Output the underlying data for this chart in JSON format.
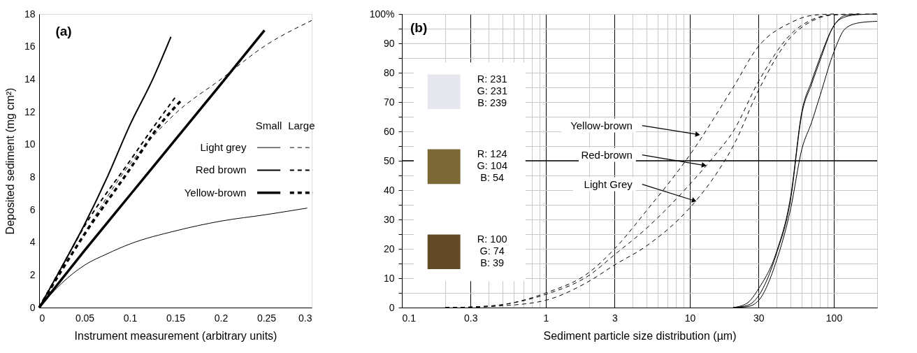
{
  "chart_data": [
    {
      "type": "line",
      "xlabel": "Instrument measurement (arbitrary units)",
      "ylabel": "Deposited sediment (mg cm²)",
      "annotations": [
        "(a)",
        "Small",
        "Large"
      ],
      "xlim": [
        0,
        0.3
      ],
      "xticks": [
        0,
        0.05,
        0.1,
        0.15,
        0.2,
        0.25,
        0.3
      ],
      "ylim": [
        0,
        18
      ],
      "yticks": [
        0,
        2,
        4,
        6,
        8,
        10,
        12,
        14,
        16,
        18
      ],
      "grid": false,
      "legend": "right",
      "series": [
        {
          "name": "Light grey",
          "color": "#000000",
          "line_style": "solid",
          "x": [
            0,
            0.025,
            0.05,
            0.075,
            0.1,
            0.15,
            0.2,
            0.25,
            0.295
          ],
          "values": [
            0,
            1.5,
            2.6,
            3.3,
            3.9,
            4.7,
            5.3,
            5.7,
            6.1
          ]
        },
        {
          "color": "#000000",
          "line_style": "dashed",
          "x": [
            0,
            0.05,
            0.1,
            0.15,
            0.2,
            0.25,
            0.3
          ],
          "values": [
            0,
            4.6,
            8.8,
            11.9,
            14.0,
            16.1,
            17.6
          ]
        },
        {
          "name": "Red brown",
          "color": "#000000",
          "line_style": "solid",
          "x": [
            0,
            0.025,
            0.05,
            0.075,
            0.1,
            0.125,
            0.145
          ],
          "values": [
            0,
            2.5,
            5.1,
            8.0,
            11.2,
            14.0,
            16.6
          ]
        },
        {
          "color": "#000000",
          "line_style": "dashed",
          "x": [
            0,
            0.025,
            0.05,
            0.1,
            0.125,
            0.15
          ],
          "values": [
            0,
            2.5,
            5.0,
            9.0,
            11.0,
            12.9
          ]
        },
        {
          "name": "Yellow-brown",
          "color": "#000000",
          "line_style": "solid",
          "x": [
            0,
            0.05,
            0.1,
            0.15,
            0.2,
            0.248
          ],
          "values": [
            0,
            3.5,
            6.9,
            10.3,
            13.7,
            17.0
          ]
        },
        {
          "color": "#000000",
          "line_style": "dashed",
          "x": [
            0,
            0.025,
            0.05,
            0.1,
            0.13,
            0.158
          ],
          "values": [
            0,
            2.3,
            4.5,
            8.5,
            11.0,
            12.8
          ]
        }
      ]
    },
    {
      "type": "line",
      "xlabel": "Sediment particle size distribution (µm)",
      "log": "x",
      "annotations": [
        "(b)",
        "R: 231\nG: 231\nB: 239",
        "R: 124\nG: 104\nB:  54",
        "R: 100\nG: 74\nB: 39",
        {
          "text": "Yellow-brown",
          "x": 11.2,
          "y": 59
        },
        {
          "text": "Red-brown",
          "x": 12.4,
          "y": 48.5
        },
        {
          "text": "Light Grey",
          "x": 10.6,
          "y": 36.5
        }
      ],
      "xlim": [
        0.1,
        200
      ],
      "xticks": [
        0.1,
        {
          "value": 0.2,
          "label": null
        },
        0.3,
        {
          "value": 0.4,
          "label": null
        },
        {
          "value": 0.5,
          "label": null
        },
        {
          "value": 0.6,
          "label": null
        },
        {
          "value": 0.7,
          "label": null
        },
        {
          "value": 0.8,
          "label": null
        },
        {
          "value": 0.9,
          "label": null
        },
        1,
        {
          "value": 2,
          "label": null
        },
        3,
        {
          "value": 4,
          "label": null
        },
        {
          "value": 5,
          "label": null
        },
        {
          "value": 6,
          "label": null
        },
        {
          "value": 7,
          "label": null
        },
        {
          "value": 8,
          "label": null
        },
        {
          "value": 9,
          "label": null
        },
        10,
        {
          "value": 20,
          "label": null
        },
        30,
        {
          "value": 40,
          "label": null
        },
        {
          "value": 50,
          "label": null
        },
        {
          "value": 60,
          "label": null
        },
        {
          "value": 70,
          "label": null
        },
        {
          "value": 80,
          "label": null
        },
        {
          "value": 90,
          "label": null
        },
        100,
        {
          "value": 200,
          "label": null
        }
      ],
      "ylim": [
        0,
        100
      ],
      "yticks": [
        0,
        {
          "value": 5,
          "label": null
        },
        10,
        {
          "value": 15,
          "label": null
        },
        20,
        {
          "value": 25,
          "label": null
        },
        30,
        {
          "value": 35,
          "label": null
        },
        40,
        {
          "value": 45,
          "label": null
        },
        50,
        {
          "value": 55,
          "label": null
        },
        60,
        {
          "value": 65,
          "label": null
        },
        70,
        {
          "value": 75,
          "label": null
        },
        80,
        {
          "value": 85,
          "label": null
        },
        90,
        {
          "value": 95,
          "label": null
        },
        {
          "value": 100,
          "label": "100%"
        }
      ],
      "grid": true,
      "ref_lines": [
        {
          "axis": "y",
          "value": 50,
          "color": "#000000"
        }
      ],
      "series": [
        {
          "color": "#000000",
          "line_style": "dashed",
          "x": [
            0.2,
            0.3,
            0.5,
            1,
            2,
            3,
            5,
            10,
            20,
            30,
            50,
            70,
            100
          ],
          "values": [
            0,
            0.2,
            1,
            5,
            12,
            20,
            33,
            52,
            75,
            89,
            97,
            99.5,
            100
          ]
        },
        {
          "color": "#000000",
          "line_style": "dashed",
          "x": [
            0.2,
            0.3,
            0.5,
            1,
            2,
            3,
            5,
            10,
            15,
            20,
            30,
            50,
            70,
            100,
            150
          ],
          "values": [
            0,
            0.2,
            1,
            4.5,
            11,
            18,
            27,
            42,
            52,
            60,
            77,
            93,
            98,
            99.8,
            100
          ]
        },
        {
          "color": "#000000",
          "line_style": "dashed",
          "x": [
            0.2,
            0.3,
            0.5,
            1,
            2,
            3,
            5,
            10,
            15,
            20,
            30,
            50,
            70,
            100,
            200
          ],
          "values": [
            0,
            0.1,
            0.6,
            2.5,
            9,
            14.5,
            21,
            34,
            45,
            55,
            74,
            92,
            97.5,
            99.7,
            100
          ]
        },
        {
          "color": "#000000",
          "line_style": "solid",
          "x": [
            20,
            25,
            30,
            40,
            50,
            60,
            70,
            80,
            100,
            120,
            150
          ],
          "values": [
            0,
            1.5,
            6.4,
            19,
            37.5,
            66.8,
            77,
            85,
            96,
            99.5,
            100
          ]
        },
        {
          "color": "#000000",
          "line_style": "solid",
          "x": [
            20,
            25,
            30,
            40,
            50,
            60,
            70,
            80,
            100,
            120,
            150,
            200
          ],
          "values": [
            0,
            0.7,
            4,
            18.4,
            36.5,
            66,
            76,
            84,
            96,
            99,
            99.8,
            100
          ]
        },
        {
          "color": "#000000",
          "line_style": "solid",
          "x": [
            20,
            25,
            30,
            40,
            50,
            60,
            70,
            80,
            100,
            120,
            150,
            200
          ],
          "values": [
            0,
            0.3,
            2.4,
            16,
            33.4,
            54,
            63,
            72,
            87,
            95,
            97,
            97.5
          ]
        }
      ]
    }
  ]
}
